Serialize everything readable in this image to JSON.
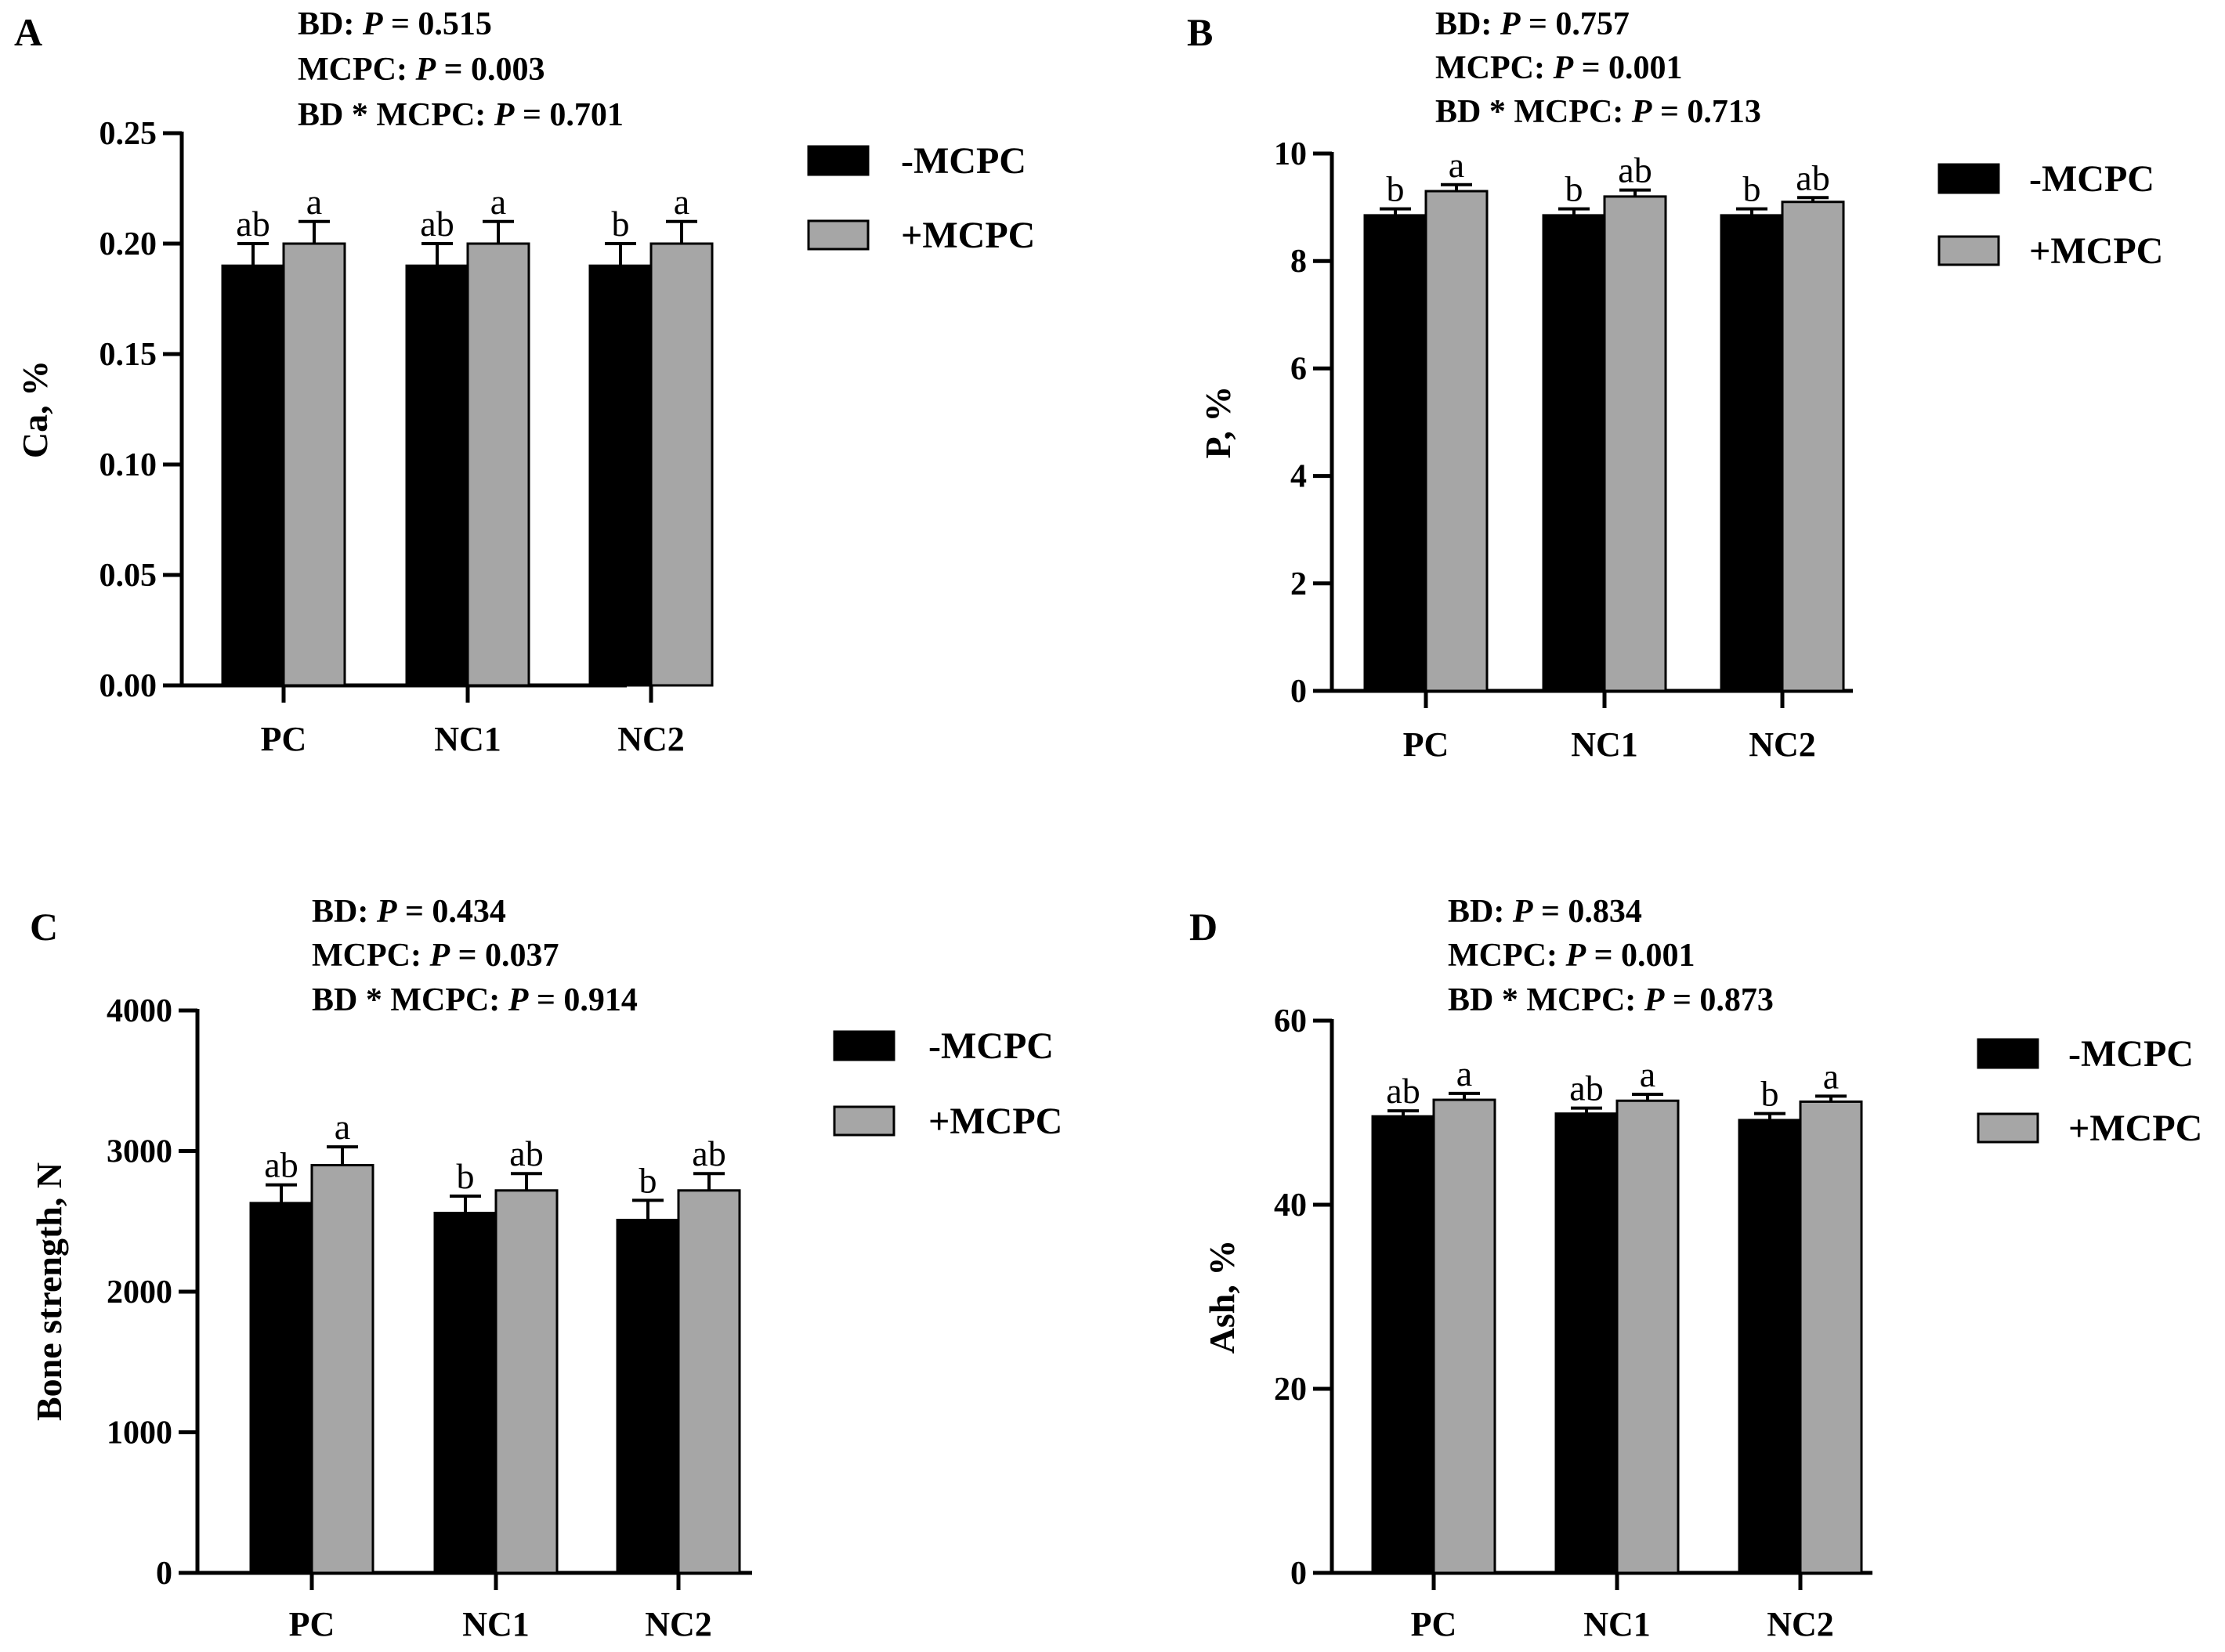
{
  "colors": {
    "minus": "#000000",
    "plus": "#a6a6a6",
    "axis": "#000000"
  },
  "chart_data": [
    {
      "panel": "A",
      "type": "bar",
      "stats": [
        {
          "label": "BD: ",
          "p": "P",
          "rest": " = 0.515"
        },
        {
          "label": "MCPC: ",
          "p": "P",
          "rest": " = 0.003"
        },
        {
          "label": "BD * MCPC: ",
          "p": "P",
          "rest": " = 0.701"
        }
      ],
      "ylabel": "Ca, %",
      "ylim": [
        0,
        0.25
      ],
      "yticks": [
        0,
        0.05,
        0.1,
        0.15,
        0.2,
        0.25
      ],
      "yticklabels": [
        "0.00",
        "0.05",
        "0.10",
        "0.15",
        "0.20",
        "0.25"
      ],
      "categories": [
        "PC",
        "NC1",
        "NC2"
      ],
      "series": [
        {
          "name": "-MCPC",
          "values": [
            0.19,
            0.19,
            0.19
          ],
          "errors": [
            0.01,
            0.01,
            0.01
          ],
          "letters": [
            "ab",
            "ab",
            "b"
          ]
        },
        {
          "name": "+MCPC",
          "values": [
            0.2,
            0.2,
            0.2
          ],
          "errors": [
            0.01,
            0.01,
            0.01
          ],
          "letters": [
            "a",
            "a",
            "a"
          ]
        }
      ],
      "legend": [
        "-MCPC",
        "+MCPC"
      ]
    },
    {
      "panel": "B",
      "type": "bar",
      "stats": [
        {
          "label": "BD: ",
          "p": "P",
          "rest": " = 0.757"
        },
        {
          "label": "MCPC: ",
          "p": "P",
          "rest": " = 0.001"
        },
        {
          "label": "BD * MCPC: ",
          "p": "P",
          "rest": " = 0.713"
        }
      ],
      "ylabel": "P, %",
      "ylim": [
        0,
        10
      ],
      "yticks": [
        0,
        2,
        4,
        6,
        8,
        10
      ],
      "yticklabels": [
        "0",
        "2",
        "4",
        "6",
        "8",
        "10"
      ],
      "categories": [
        "PC",
        "NC1",
        "NC2"
      ],
      "series": [
        {
          "name": "-MCPC",
          "values": [
            8.85,
            8.85,
            8.85
          ],
          "errors": [
            0.12,
            0.12,
            0.12
          ],
          "letters": [
            "b",
            "b",
            "b"
          ]
        },
        {
          "name": "+MCPC",
          "values": [
            9.3,
            9.2,
            9.1
          ],
          "errors": [
            0.12,
            0.12,
            0.08
          ],
          "letters": [
            "a",
            "ab",
            "ab"
          ]
        }
      ],
      "legend": [
        "-MCPC",
        "+MCPC"
      ]
    },
    {
      "panel": "C",
      "type": "bar",
      "stats": [
        {
          "label": "BD: ",
          "p": "P",
          "rest": " = 0.434"
        },
        {
          "label": "MCPC: ",
          "p": "P",
          "rest": " = 0.037"
        },
        {
          "label": "BD * MCPC: ",
          "p": "P",
          "rest": " = 0.914"
        }
      ],
      "ylabel": "Bone strength, N",
      "ylim": [
        0,
        4000
      ],
      "yticks": [
        0,
        1000,
        2000,
        3000,
        4000
      ],
      "yticklabels": [
        "0",
        "1000",
        "2000",
        "3000",
        "4000"
      ],
      "categories": [
        "PC",
        "NC1",
        "NC2"
      ],
      "series": [
        {
          "name": "-MCPC",
          "values": [
            2630,
            2560,
            2510
          ],
          "errors": [
            130,
            120,
            140
          ],
          "letters": [
            "ab",
            "b",
            "b"
          ]
        },
        {
          "name": "+MCPC",
          "values": [
            2900,
            2720,
            2720
          ],
          "errors": [
            130,
            120,
            120
          ],
          "letters": [
            "a",
            "ab",
            "ab"
          ]
        }
      ],
      "legend": [
        "-MCPC",
        "+MCPC"
      ]
    },
    {
      "panel": "D",
      "type": "bar",
      "stats": [
        {
          "label": "BD: ",
          "p": "P",
          "rest": " = 0.834"
        },
        {
          "label": "MCPC: ",
          "p": "P",
          "rest": " = 0.001"
        },
        {
          "label": "BD * MCPC: ",
          "p": "P",
          "rest": " = 0.873"
        }
      ],
      "ylabel": "Ash, %",
      "ylim": [
        0,
        60
      ],
      "yticks": [
        0,
        20,
        40,
        60
      ],
      "yticklabels": [
        "0",
        "20",
        "40",
        "60"
      ],
      "categories": [
        "PC",
        "NC1",
        "NC2"
      ],
      "series": [
        {
          "name": "-MCPC",
          "values": [
            49.6,
            49.9,
            49.2
          ],
          "errors": [
            0.6,
            0.6,
            0.7
          ],
          "letters": [
            "ab",
            "ab",
            "b"
          ]
        },
        {
          "name": "+MCPC",
          "values": [
            51.4,
            51.3,
            51.2
          ],
          "errors": [
            0.7,
            0.7,
            0.6
          ],
          "letters": [
            "a",
            "a",
            "a"
          ]
        }
      ],
      "legend": [
        "-MCPC",
        "+MCPC"
      ]
    }
  ]
}
